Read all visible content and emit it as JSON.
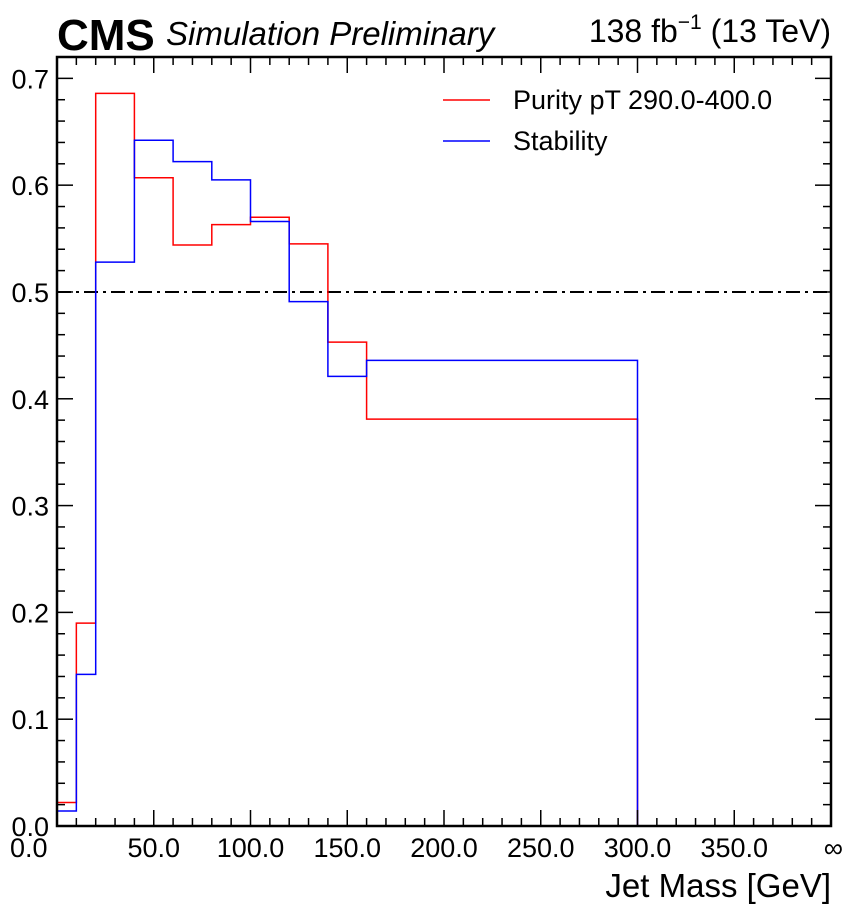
{
  "header": {
    "cms": "CMS",
    "subtitle": "Simulation Preliminary",
    "lumi_main": "138 fb",
    "lumi_exp": "−1",
    "lumi_energy": " (13 TeV)"
  },
  "chart_data": {
    "type": "line",
    "style": "step",
    "xlabel": "Jet Mass [GeV]",
    "ylabel": "",
    "xlim": [
      0,
      400
    ],
    "ylim": [
      0,
      0.72
    ],
    "x_ticks": [
      "0.0",
      "50.0",
      "100.0",
      "150.0",
      "200.0",
      "250.0",
      "300.0",
      "350.0",
      "∞"
    ],
    "y_ticks": [
      "0.0",
      "0.1",
      "0.2",
      "0.3",
      "0.4",
      "0.5",
      "0.6",
      "0.7"
    ],
    "bin_edges": [
      0,
      10,
      20,
      40,
      60,
      80,
      100,
      120,
      140,
      160,
      300,
      400
    ],
    "series": [
      {
        "name": "Purity pT 290.0-400.0",
        "color": "#ff0000",
        "values": [
          0.022,
          0.19,
          0.686,
          0.607,
          0.544,
          0.563,
          0.57,
          0.545,
          0.453,
          0.381,
          0.0
        ]
      },
      {
        "name": "Stability",
        "color": "#0000ff",
        "values": [
          0.014,
          0.142,
          0.528,
          0.642,
          0.622,
          0.605,
          0.566,
          0.491,
          0.421,
          0.436,
          0.0
        ]
      }
    ],
    "reference_line": {
      "y": 0.5,
      "style": "dash-dot",
      "color": "#000000"
    },
    "legend": {
      "placement": "top-right"
    },
    "grid": false
  }
}
